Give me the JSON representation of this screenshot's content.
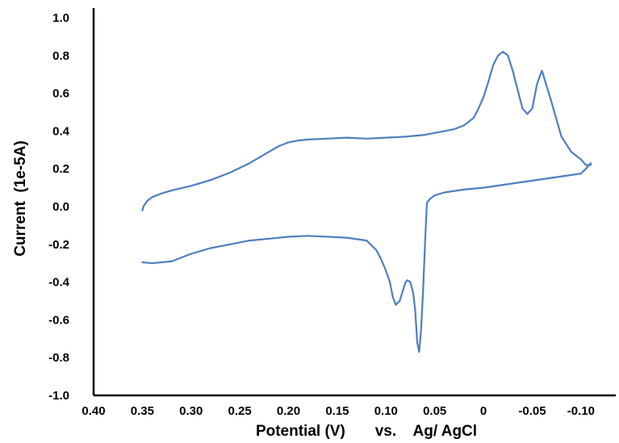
{
  "chart_data": {
    "type": "line",
    "title": "",
    "xlabel": "Potential (V)       vs.    Ag/ AgCl",
    "ylabel": "Current  (1e-5A)",
    "xlim": [
      0.4,
      -0.12
    ],
    "ylim": [
      -1.0,
      1.0
    ],
    "x_reversed": true,
    "grid": false,
    "legend": "none",
    "line_color": "#4f7fbf",
    "x_ticks": [
      {
        "value": 0.4,
        "label": "0.40"
      },
      {
        "value": 0.35,
        "label": "0.35"
      },
      {
        "value": 0.3,
        "label": "0.30"
      },
      {
        "value": 0.25,
        "label": "0.25"
      },
      {
        "value": 0.2,
        "label": "0.20"
      },
      {
        "value": 0.15,
        "label": "0.15"
      },
      {
        "value": 0.1,
        "label": "0.10"
      },
      {
        "value": 0.05,
        "label": "0.05"
      },
      {
        "value": 0.0,
        "label": "0"
      },
      {
        "value": -0.05,
        "label": "-0.05"
      },
      {
        "value": -0.1,
        "label": "-0.10"
      }
    ],
    "y_ticks": [
      {
        "value": 1.0,
        "label": "1.0"
      },
      {
        "value": 0.8,
        "label": "0.8"
      },
      {
        "value": 0.6,
        "label": "0.6"
      },
      {
        "value": 0.4,
        "label": "0.4"
      },
      {
        "value": 0.2,
        "label": "0.2"
      },
      {
        "value": 0.0,
        "label": "0.0"
      },
      {
        "value": -0.2,
        "label": "-0.2"
      },
      {
        "value": -0.4,
        "label": "-0.4"
      },
      {
        "value": -0.6,
        "label": "-0.6"
      },
      {
        "value": -0.8,
        "label": "-0.8"
      },
      {
        "value": -1.0,
        "label": "-1.0"
      }
    ],
    "series": [
      {
        "x": [
          0.35,
          0.349,
          0.345,
          0.34,
          0.33,
          0.32,
          0.3,
          0.28,
          0.26,
          0.24,
          0.22,
          0.21,
          0.2,
          0.19,
          0.18,
          0.16,
          0.14,
          0.12,
          0.1,
          0.08,
          0.06,
          0.04,
          0.03,
          0.02,
          0.01,
          0.005,
          0.0,
          -0.005,
          -0.01,
          -0.015,
          -0.02,
          -0.025,
          -0.03,
          -0.035,
          -0.04,
          -0.045,
          -0.05,
          -0.055,
          -0.06,
          -0.07,
          -0.08,
          -0.09,
          -0.1,
          -0.105,
          -0.11,
          -0.11,
          -0.105,
          -0.1,
          -0.08,
          -0.06,
          -0.04,
          -0.02,
          0.0,
          0.02,
          0.04,
          0.05,
          0.055,
          0.058,
          0.06,
          0.062,
          0.064,
          0.066,
          0.068,
          0.07,
          0.072,
          0.075,
          0.078,
          0.08,
          0.083,
          0.086,
          0.09,
          0.093,
          0.096,
          0.1,
          0.105,
          0.11,
          0.12,
          0.14,
          0.16,
          0.18,
          0.2,
          0.22,
          0.24,
          0.26,
          0.28,
          0.3,
          0.32,
          0.34,
          0.35
        ],
        "y": [
          -0.02,
          0.0,
          0.03,
          0.05,
          0.07,
          0.085,
          0.11,
          0.14,
          0.18,
          0.23,
          0.29,
          0.32,
          0.34,
          0.35,
          0.355,
          0.36,
          0.365,
          0.36,
          0.365,
          0.37,
          0.38,
          0.4,
          0.41,
          0.43,
          0.47,
          0.52,
          0.58,
          0.66,
          0.75,
          0.8,
          0.82,
          0.8,
          0.72,
          0.62,
          0.52,
          0.49,
          0.52,
          0.65,
          0.72,
          0.55,
          0.37,
          0.29,
          0.25,
          0.22,
          0.22,
          0.23,
          0.2,
          0.175,
          0.16,
          0.145,
          0.13,
          0.115,
          0.1,
          0.09,
          0.075,
          0.06,
          0.04,
          0.02,
          -0.2,
          -0.45,
          -0.65,
          -0.77,
          -0.72,
          -0.55,
          -0.46,
          -0.4,
          -0.39,
          -0.4,
          -0.45,
          -0.5,
          -0.52,
          -0.48,
          -0.4,
          -0.34,
          -0.28,
          -0.23,
          -0.18,
          -0.165,
          -0.16,
          -0.155,
          -0.16,
          -0.17,
          -0.18,
          -0.2,
          -0.22,
          -0.25,
          -0.29,
          -0.3,
          -0.295
        ]
      }
    ]
  }
}
